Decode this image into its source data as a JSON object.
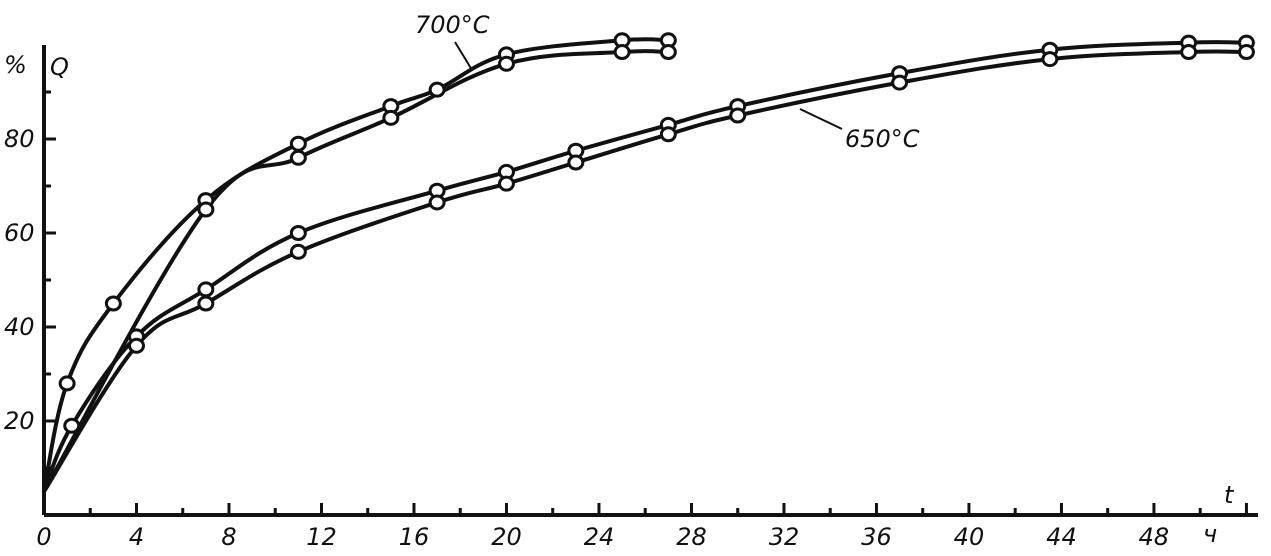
{
  "chart_data": {
    "type": "line",
    "title": "",
    "ylabel_unit": "%",
    "ylabel": "Q",
    "xlabel": "t",
    "x_unit": "ч",
    "xlim": [
      0,
      52.5
    ],
    "ylim": [
      0,
      100
    ],
    "x_ticks": [
      {
        "value": 0,
        "label": "0"
      },
      {
        "value": 4,
        "label": "4"
      },
      {
        "value": 8,
        "label": "8"
      },
      {
        "value": 12,
        "label": "12"
      },
      {
        "value": 16,
        "label": "16"
      },
      {
        "value": 20,
        "label": "20"
      },
      {
        "value": 24,
        "label": "24"
      },
      {
        "value": 28,
        "label": "28"
      },
      {
        "value": 32,
        "label": "32"
      },
      {
        "value": 36,
        "label": "36"
      },
      {
        "value": 40,
        "label": "40"
      },
      {
        "value": 44,
        "label": "44"
      },
      {
        "value": 48,
        "label": "48"
      }
    ],
    "y_ticks": [
      {
        "value": 20,
        "label": "20"
      },
      {
        "value": 40,
        "label": "40"
      },
      {
        "value": 60,
        "label": "60"
      },
      {
        "value": 80,
        "label": "80"
      }
    ],
    "annotations": [
      {
        "text": "700°C",
        "series_group": "700"
      },
      {
        "text": "650°C",
        "series_group": "650"
      }
    ],
    "series": [
      {
        "group": "700",
        "x": [
          0,
          1,
          3,
          7,
          11,
          15,
          17,
          20,
          25,
          27
        ],
        "y": [
          5,
          28,
          45,
          67,
          79,
          87,
          90.5,
          98,
          101,
          101
        ]
      },
      {
        "group": "700",
        "x": [
          0,
          7,
          11,
          15,
          20,
          25,
          27
        ],
        "y": [
          5,
          65,
          76,
          84.5,
          96,
          98.5,
          98.5
        ]
      },
      {
        "group": "650",
        "x": [
          0,
          1.2,
          4,
          7,
          11,
          17,
          20,
          23,
          27,
          30,
          37,
          43.5,
          49.5,
          52
        ],
        "y": [
          5,
          19,
          38,
          48,
          60,
          69,
          73,
          77.5,
          83,
          87,
          94,
          99,
          100.5,
          100.5
        ]
      },
      {
        "group": "650",
        "x": [
          0,
          4,
          7,
          11,
          17,
          20,
          23,
          27,
          30,
          37,
          43.5,
          49.5,
          52
        ],
        "y": [
          5,
          36,
          45,
          56,
          66.5,
          70.5,
          75,
          81,
          85,
          92,
          97,
          98.5,
          98.5
        ]
      }
    ]
  }
}
